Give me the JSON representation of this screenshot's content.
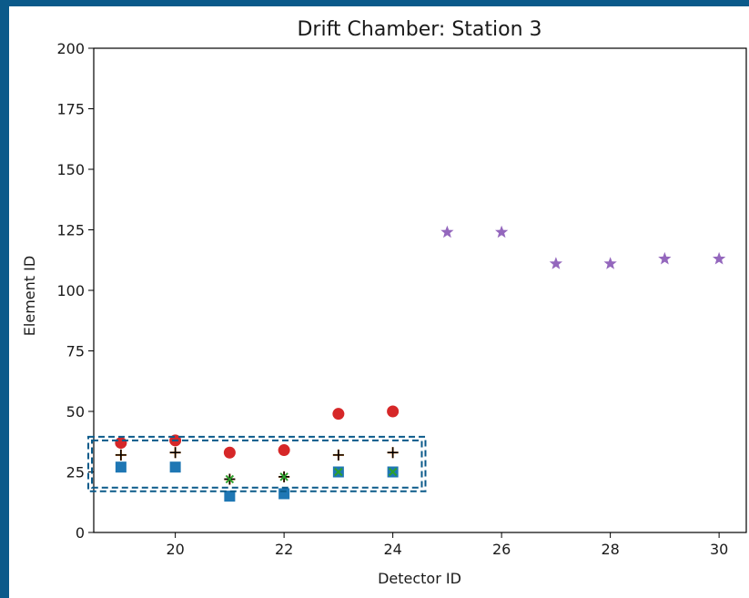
{
  "chart_data": {
    "type": "scatter",
    "title": "Drift Chamber: Station 3",
    "xlabel": "Detector ID",
    "ylabel": "Element ID",
    "xlim": [
      18.5,
      30.5
    ],
    "ylim": [
      0,
      200
    ],
    "xticks": [
      20,
      22,
      24,
      26,
      28,
      30
    ],
    "yticks": [
      0,
      25,
      50,
      75,
      100,
      125,
      150,
      175,
      200
    ],
    "grid": false,
    "series": [
      {
        "marker": "square",
        "color": "#1f77b4",
        "x": [
          19,
          20,
          21,
          22,
          23,
          24
        ],
        "y": [
          27,
          27,
          15,
          16,
          25,
          25
        ]
      },
      {
        "marker": "circle",
        "color": "#d62728",
        "x": [
          19,
          20,
          21,
          22,
          23,
          24
        ],
        "y": [
          37,
          38,
          33,
          34,
          49,
          50
        ]
      },
      {
        "marker": "plus",
        "color": "#ff7f0e",
        "x": [
          19,
          20,
          21,
          22,
          23,
          24
        ],
        "y": [
          32,
          33,
          22,
          23,
          32,
          33
        ]
      },
      {
        "marker": "plus",
        "color": "#000000",
        "x": [
          19,
          20,
          21,
          22,
          23,
          24
        ],
        "y": [
          32,
          33,
          22,
          23,
          32,
          33
        ]
      },
      {
        "marker": "x",
        "color": "#2ca02c",
        "x": [
          21,
          22,
          23,
          24
        ],
        "y": [
          22,
          23,
          25,
          25
        ]
      },
      {
        "marker": "star",
        "color": "#9467bd",
        "x": [
          25,
          26,
          27,
          28,
          29,
          30
        ],
        "y": [
          124,
          124,
          111,
          111,
          113,
          113
        ]
      }
    ],
    "highlight_box": {
      "x": [
        18.4,
        24.6
      ],
      "y": [
        17,
        39.5
      ],
      "color": "#0b5a8a",
      "style": "dashed"
    }
  }
}
